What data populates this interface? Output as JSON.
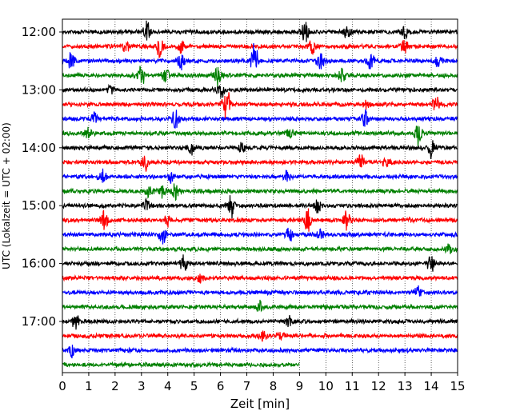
{
  "chart_data": {
    "type": "line",
    "title": "",
    "xlabel": "Zeit  [min]",
    "ylabel": "UTC (Lokalzeit = UTC + 02:00)",
    "xlim": [
      0,
      15
    ],
    "x_ticks": [
      "0",
      "1",
      "2",
      "3",
      "4",
      "5",
      "6",
      "7",
      "8",
      "9",
      "10",
      "11",
      "12",
      "13",
      "14",
      "15"
    ],
    "y_ticks": [
      "12:00",
      "13:00",
      "14:00",
      "15:00",
      "16:00",
      "17:00"
    ],
    "grid": "vertical-dotted",
    "legend": "none",
    "colors": [
      "#000000",
      "#ff0000",
      "#0000ff",
      "#008000"
    ],
    "rows": [
      {
        "start": "12:00",
        "color": "#000000",
        "end_min": 15,
        "events": [
          [
            3.2,
            2.2
          ],
          [
            9.2,
            2.8
          ],
          [
            10.8,
            1.8
          ],
          [
            13.0,
            1.5
          ]
        ]
      },
      {
        "start": "12:15",
        "color": "#ff0000",
        "end_min": 15,
        "events": [
          [
            2.4,
            1.4
          ],
          [
            3.7,
            2.5
          ],
          [
            4.5,
            1.5
          ],
          [
            9.5,
            1.6
          ],
          [
            13.0,
            1.5
          ]
        ]
      },
      {
        "start": "12:30",
        "color": "#0000ff",
        "end_min": 15,
        "events": [
          [
            0.35,
            2.0
          ],
          [
            4.5,
            1.8
          ],
          [
            7.3,
            4.8
          ],
          [
            9.8,
            2.0
          ],
          [
            11.7,
            2.6
          ],
          [
            14.3,
            1.6
          ]
        ]
      },
      {
        "start": "12:45",
        "color": "#008000",
        "end_min": 15,
        "events": [
          [
            3.0,
            2.4
          ],
          [
            3.9,
            2.0
          ],
          [
            5.9,
            2.4
          ],
          [
            10.6,
            1.5
          ]
        ]
      },
      {
        "start": "13:00",
        "color": "#000000",
        "end_min": 15,
        "events": [
          [
            1.8,
            1.4
          ],
          [
            6.0,
            2.0
          ]
        ]
      },
      {
        "start": "13:15",
        "color": "#ff0000",
        "end_min": 15,
        "events": [
          [
            6.2,
            4.8
          ],
          [
            14.2,
            2.0
          ],
          [
            11.5,
            1.3
          ]
        ]
      },
      {
        "start": "13:30",
        "color": "#0000ff",
        "end_min": 15,
        "events": [
          [
            4.3,
            2.2
          ],
          [
            11.5,
            2.0
          ],
          [
            1.2,
            1.3
          ]
        ]
      },
      {
        "start": "13:45",
        "color": "#008000",
        "end_min": 15,
        "events": [
          [
            1.0,
            1.3
          ],
          [
            13.5,
            2.8
          ],
          [
            8.6,
            1.3
          ]
        ]
      },
      {
        "start": "14:00",
        "color": "#000000",
        "end_min": 15,
        "events": [
          [
            4.9,
            1.5
          ],
          [
            6.8,
            1.3
          ],
          [
            14.0,
            2.0
          ]
        ]
      },
      {
        "start": "14:15",
        "color": "#ff0000",
        "end_min": 15,
        "events": [
          [
            3.1,
            2.2
          ],
          [
            11.3,
            2.2
          ],
          [
            12.3,
            1.3
          ]
        ]
      },
      {
        "start": "14:30",
        "color": "#0000ff",
        "end_min": 15,
        "events": [
          [
            1.5,
            2.2
          ],
          [
            8.5,
            1.5
          ],
          [
            4.1,
            1.3
          ]
        ]
      },
      {
        "start": "14:45",
        "color": "#008000",
        "end_min": 15,
        "events": [
          [
            3.3,
            2.0
          ],
          [
            4.3,
            2.6
          ],
          [
            3.8,
            1.6
          ]
        ]
      },
      {
        "start": "15:00",
        "color": "#000000",
        "end_min": 15,
        "events": [
          [
            3.2,
            1.6
          ],
          [
            6.4,
            2.4
          ],
          [
            9.7,
            1.8
          ]
        ]
      },
      {
        "start": "15:15",
        "color": "#ff0000",
        "end_min": 15,
        "events": [
          [
            1.6,
            2.4
          ],
          [
            9.3,
            2.4
          ],
          [
            10.8,
            2.4
          ],
          [
            4.0,
            1.3
          ]
        ]
      },
      {
        "start": "15:30",
        "color": "#0000ff",
        "end_min": 15,
        "events": [
          [
            3.8,
            2.2
          ],
          [
            8.6,
            2.6
          ],
          [
            9.8,
            1.3
          ]
        ]
      },
      {
        "start": "15:45",
        "color": "#008000",
        "end_min": 15,
        "events": [
          [
            14.7,
            1.3
          ]
        ]
      },
      {
        "start": "16:00",
        "color": "#000000",
        "end_min": 15,
        "events": [
          [
            4.6,
            1.8
          ],
          [
            14.0,
            2.2
          ]
        ]
      },
      {
        "start": "16:15",
        "color": "#ff0000",
        "end_min": 15,
        "events": [
          [
            5.2,
            1.2
          ]
        ]
      },
      {
        "start": "16:30",
        "color": "#0000ff",
        "end_min": 15,
        "events": [
          [
            13.5,
            1.3
          ]
        ]
      },
      {
        "start": "16:45",
        "color": "#008000",
        "end_min": 15,
        "events": [
          [
            7.5,
            1.1
          ]
        ]
      },
      {
        "start": "17:00",
        "color": "#000000",
        "end_min": 15,
        "events": [
          [
            0.5,
            1.8
          ],
          [
            8.6,
            1.5
          ]
        ]
      },
      {
        "start": "17:15",
        "color": "#ff0000",
        "end_min": 15,
        "events": [
          [
            7.6,
            1.4
          ],
          [
            8.3,
            1.2
          ]
        ]
      },
      {
        "start": "17:30",
        "color": "#0000ff",
        "end_min": 15,
        "events": [
          [
            0.4,
            1.8
          ]
        ]
      },
      {
        "start": "17:45",
        "color": "#008000",
        "end_min": 9,
        "events": []
      }
    ]
  }
}
